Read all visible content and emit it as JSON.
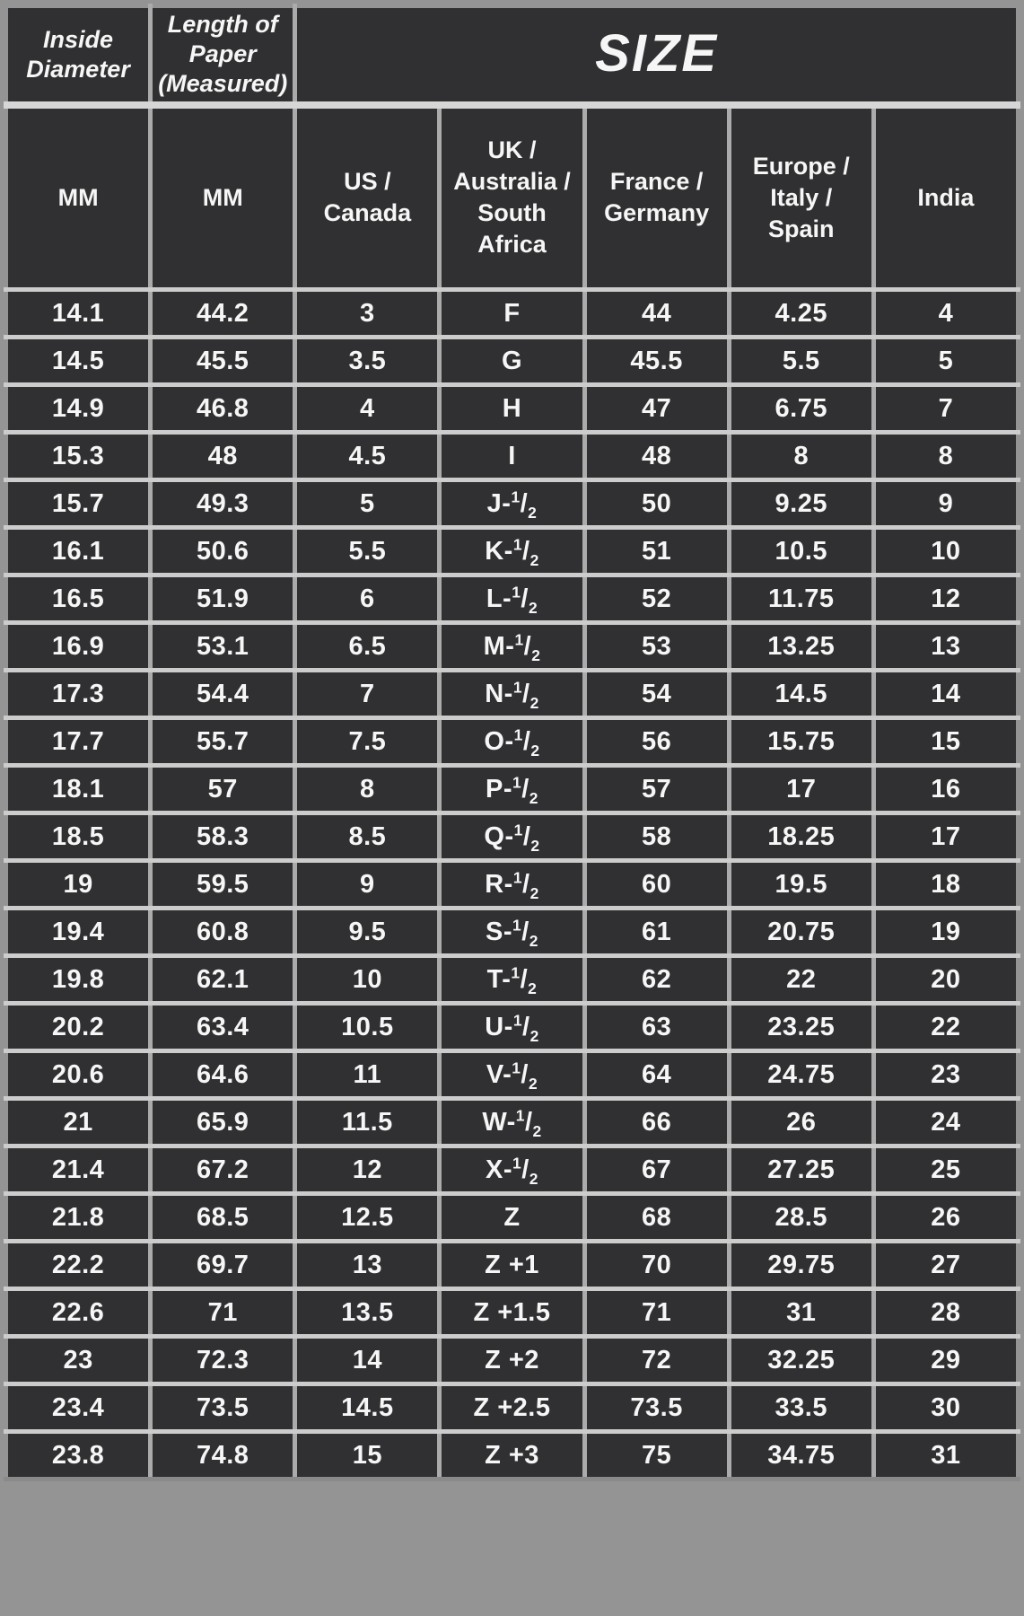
{
  "chart_data": {
    "type": "table",
    "title": "SIZE",
    "group_headers": {
      "inside_diameter": "Inside Diameter",
      "paper_length": "Length of Paper (Measured)",
      "size": "SIZE"
    },
    "columns": [
      "MM",
      "MM",
      "US / Canada",
      "UK / Australia / South Africa",
      "France / Germany",
      "Europe / Italy / Spain",
      "India"
    ],
    "rows": [
      [
        "14.1",
        "44.2",
        "3",
        "F",
        "44",
        "4.25",
        "4"
      ],
      [
        "14.5",
        "45.5",
        "3.5",
        "G",
        "45.5",
        "5.5",
        "5"
      ],
      [
        "14.9",
        "46.8",
        "4",
        "H",
        "47",
        "6.75",
        "7"
      ],
      [
        "15.3",
        "48",
        "4.5",
        "I",
        "48",
        "8",
        "8"
      ],
      [
        "15.7",
        "49.3",
        "5",
        "J-1/2",
        "50",
        "9.25",
        "9"
      ],
      [
        "16.1",
        "50.6",
        "5.5",
        "K-1/2",
        "51",
        "10.5",
        "10"
      ],
      [
        "16.5",
        "51.9",
        "6",
        "L-1/2",
        "52",
        "11.75",
        "12"
      ],
      [
        "16.9",
        "53.1",
        "6.5",
        "M-1/2",
        "53",
        "13.25",
        "13"
      ],
      [
        "17.3",
        "54.4",
        "7",
        "N-1/2",
        "54",
        "14.5",
        "14"
      ],
      [
        "17.7",
        "55.7",
        "7.5",
        "O-1/2",
        "56",
        "15.75",
        "15"
      ],
      [
        "18.1",
        "57",
        "8",
        "P-1/2",
        "57",
        "17",
        "16"
      ],
      [
        "18.5",
        "58.3",
        "8.5",
        "Q-1/2",
        "58",
        "18.25",
        "17"
      ],
      [
        "19",
        "59.5",
        "9",
        "R-1/2",
        "60",
        "19.5",
        "18"
      ],
      [
        "19.4",
        "60.8",
        "9.5",
        "S-1/2",
        "61",
        "20.75",
        "19"
      ],
      [
        "19.8",
        "62.1",
        "10",
        "T-1/2",
        "62",
        "22",
        "20"
      ],
      [
        "20.2",
        "63.4",
        "10.5",
        "U-1/2",
        "63",
        "23.25",
        "22"
      ],
      [
        "20.6",
        "64.6",
        "11",
        "V-1/2",
        "64",
        "24.75",
        "23"
      ],
      [
        "21",
        "65.9",
        "11.5",
        "W-1/2",
        "66",
        "26",
        "24"
      ],
      [
        "21.4",
        "67.2",
        "12",
        "X-1/2",
        "67",
        "27.25",
        "25"
      ],
      [
        "21.8",
        "68.5",
        "12.5",
        "Z",
        "68",
        "28.5",
        "26"
      ],
      [
        "22.2",
        "69.7",
        "13",
        "Z +1",
        "70",
        "29.75",
        "27"
      ],
      [
        "22.6",
        "71",
        "13.5",
        "Z +1.5",
        "71",
        "31",
        "28"
      ],
      [
        "23",
        "72.3",
        "14",
        "Z +2",
        "72",
        "32.25",
        "29"
      ],
      [
        "23.4",
        "73.5",
        "14.5",
        "Z +2.5",
        "73.5",
        "33.5",
        "30"
      ],
      [
        "23.8",
        "74.8",
        "15",
        "Z +3",
        "75",
        "34.75",
        "31"
      ]
    ]
  },
  "colors": {
    "cell_background": "#303032",
    "text": "#f6f6f6",
    "grid_horizontal": "#cccccc",
    "grid_vertical": "#ababab",
    "header_separator": "#d6d6d6",
    "frame": "#949494"
  }
}
